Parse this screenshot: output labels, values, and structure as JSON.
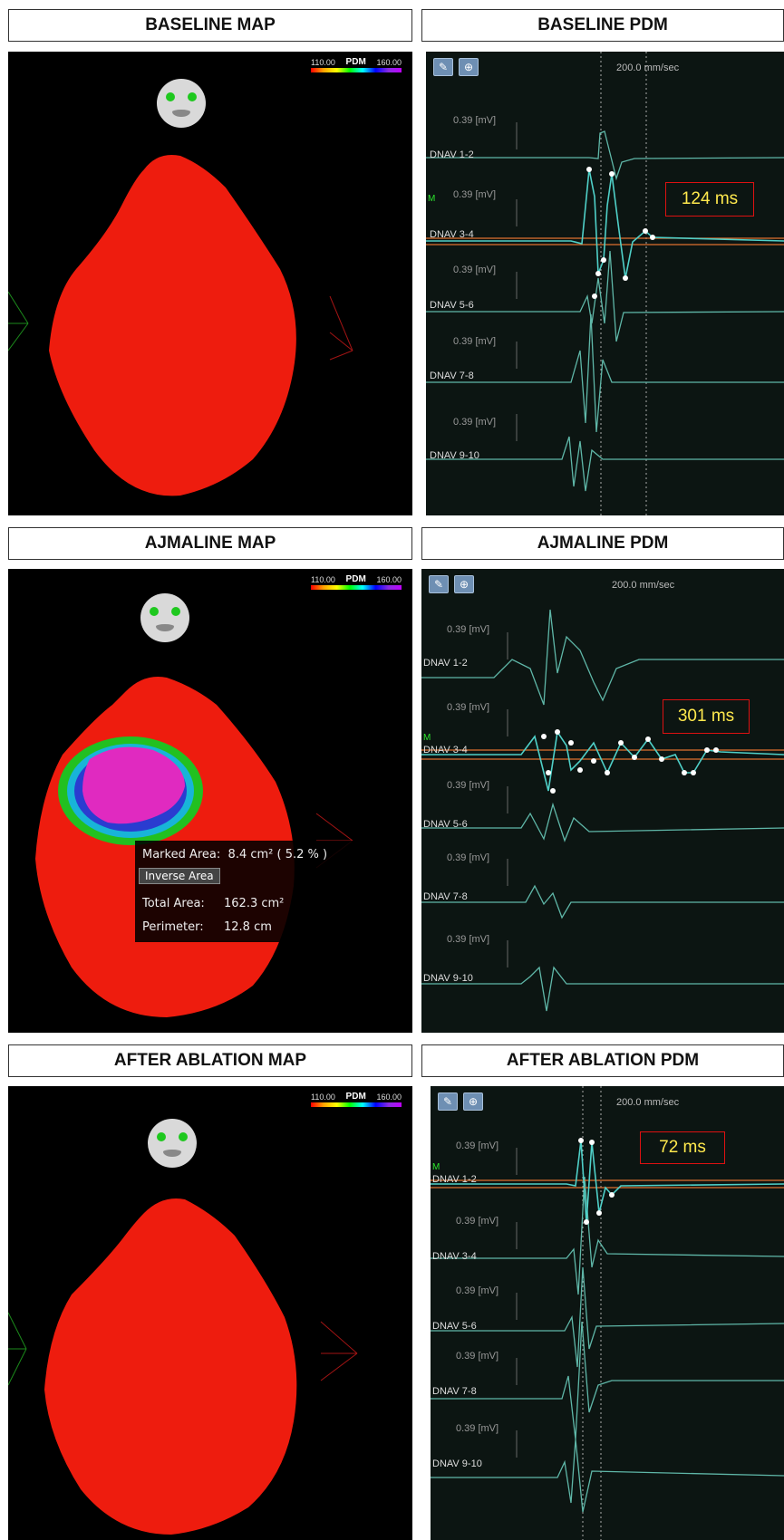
{
  "sections": [
    {
      "map_title": "BASELINE MAP",
      "pdm_title": "BASELINE PDM",
      "scale": {
        "min": "110.00",
        "label": "PDM",
        "max": "160.00"
      },
      "speed": "200.0 mm/sec",
      "duration": "124 ms",
      "leads": [
        {
          "amp": "0.39  [mV]",
          "name": "DNAV 1-2"
        },
        {
          "amp": "0.39  [mV]",
          "name": "DNAV 3-4"
        },
        {
          "amp": "0.39  [mV]",
          "name": "DNAV 5-6"
        },
        {
          "amp": "0.39  [mV]",
          "name": "DNAV 7-8"
        },
        {
          "amp": "0.39  [mV]",
          "name": "DNAV 9-10"
        }
      ],
      "marker": "M"
    },
    {
      "map_title": "AJMALINE MAP",
      "pdm_title": "AJMALINE PDM",
      "scale": {
        "min": "110.00",
        "label": "PDM",
        "max": "160.00"
      },
      "speed": "200.0 mm/sec",
      "duration": "301 ms",
      "leads": [
        {
          "amp": "0.39  [mV]",
          "name": "DNAV 1-2"
        },
        {
          "amp": "0.39  [mV]",
          "name": "DNAV 3-4"
        },
        {
          "amp": "0.39  [mV]",
          "name": "DNAV 5-6"
        },
        {
          "amp": "0.39  [mV]",
          "name": "DNAV 7-8"
        },
        {
          "amp": "0.39  [mV]",
          "name": "DNAV 9-10"
        }
      ],
      "marker": "M",
      "area_box": {
        "marked_label": "Marked Area:",
        "marked_value": "8.4 cm² ( 5.2 % )",
        "inverse_button": "Inverse Area",
        "total_label": "Total Area:",
        "total_value": "162.3 cm²",
        "perimeter_label": "Perimeter:",
        "perimeter_value": "12.8 cm"
      }
    },
    {
      "map_title": "AFTER ABLATION MAP",
      "pdm_title": "AFTER ABLATION PDM",
      "scale": {
        "min": "110.00",
        "label": "PDM",
        "max": "160.00"
      },
      "speed": "200.0 mm/sec",
      "duration": "72 ms",
      "leads": [
        {
          "amp": "0.39  [mV]",
          "name": "DNAV 1-2"
        },
        {
          "amp": "0.39  [mV]",
          "name": "DNAV 3-4"
        },
        {
          "amp": "0.39  [mV]",
          "name": "DNAV 5-6"
        },
        {
          "amp": "0.39  [mV]",
          "name": "DNAV 7-8"
        },
        {
          "amp": "0.39  [mV]",
          "name": "DNAV 9-10"
        }
      ],
      "marker": "M"
    }
  ],
  "colors": {
    "map_red": "#ee1c0e",
    "trace": "#5fb7a8",
    "highlight": "#4fd0c8",
    "ref_line": "#e07030",
    "box_border": "#dd1111",
    "box_text": "#ffe94d"
  },
  "icons": [
    "tool-icon",
    "zoom-icon",
    "face-orientation-icon"
  ]
}
